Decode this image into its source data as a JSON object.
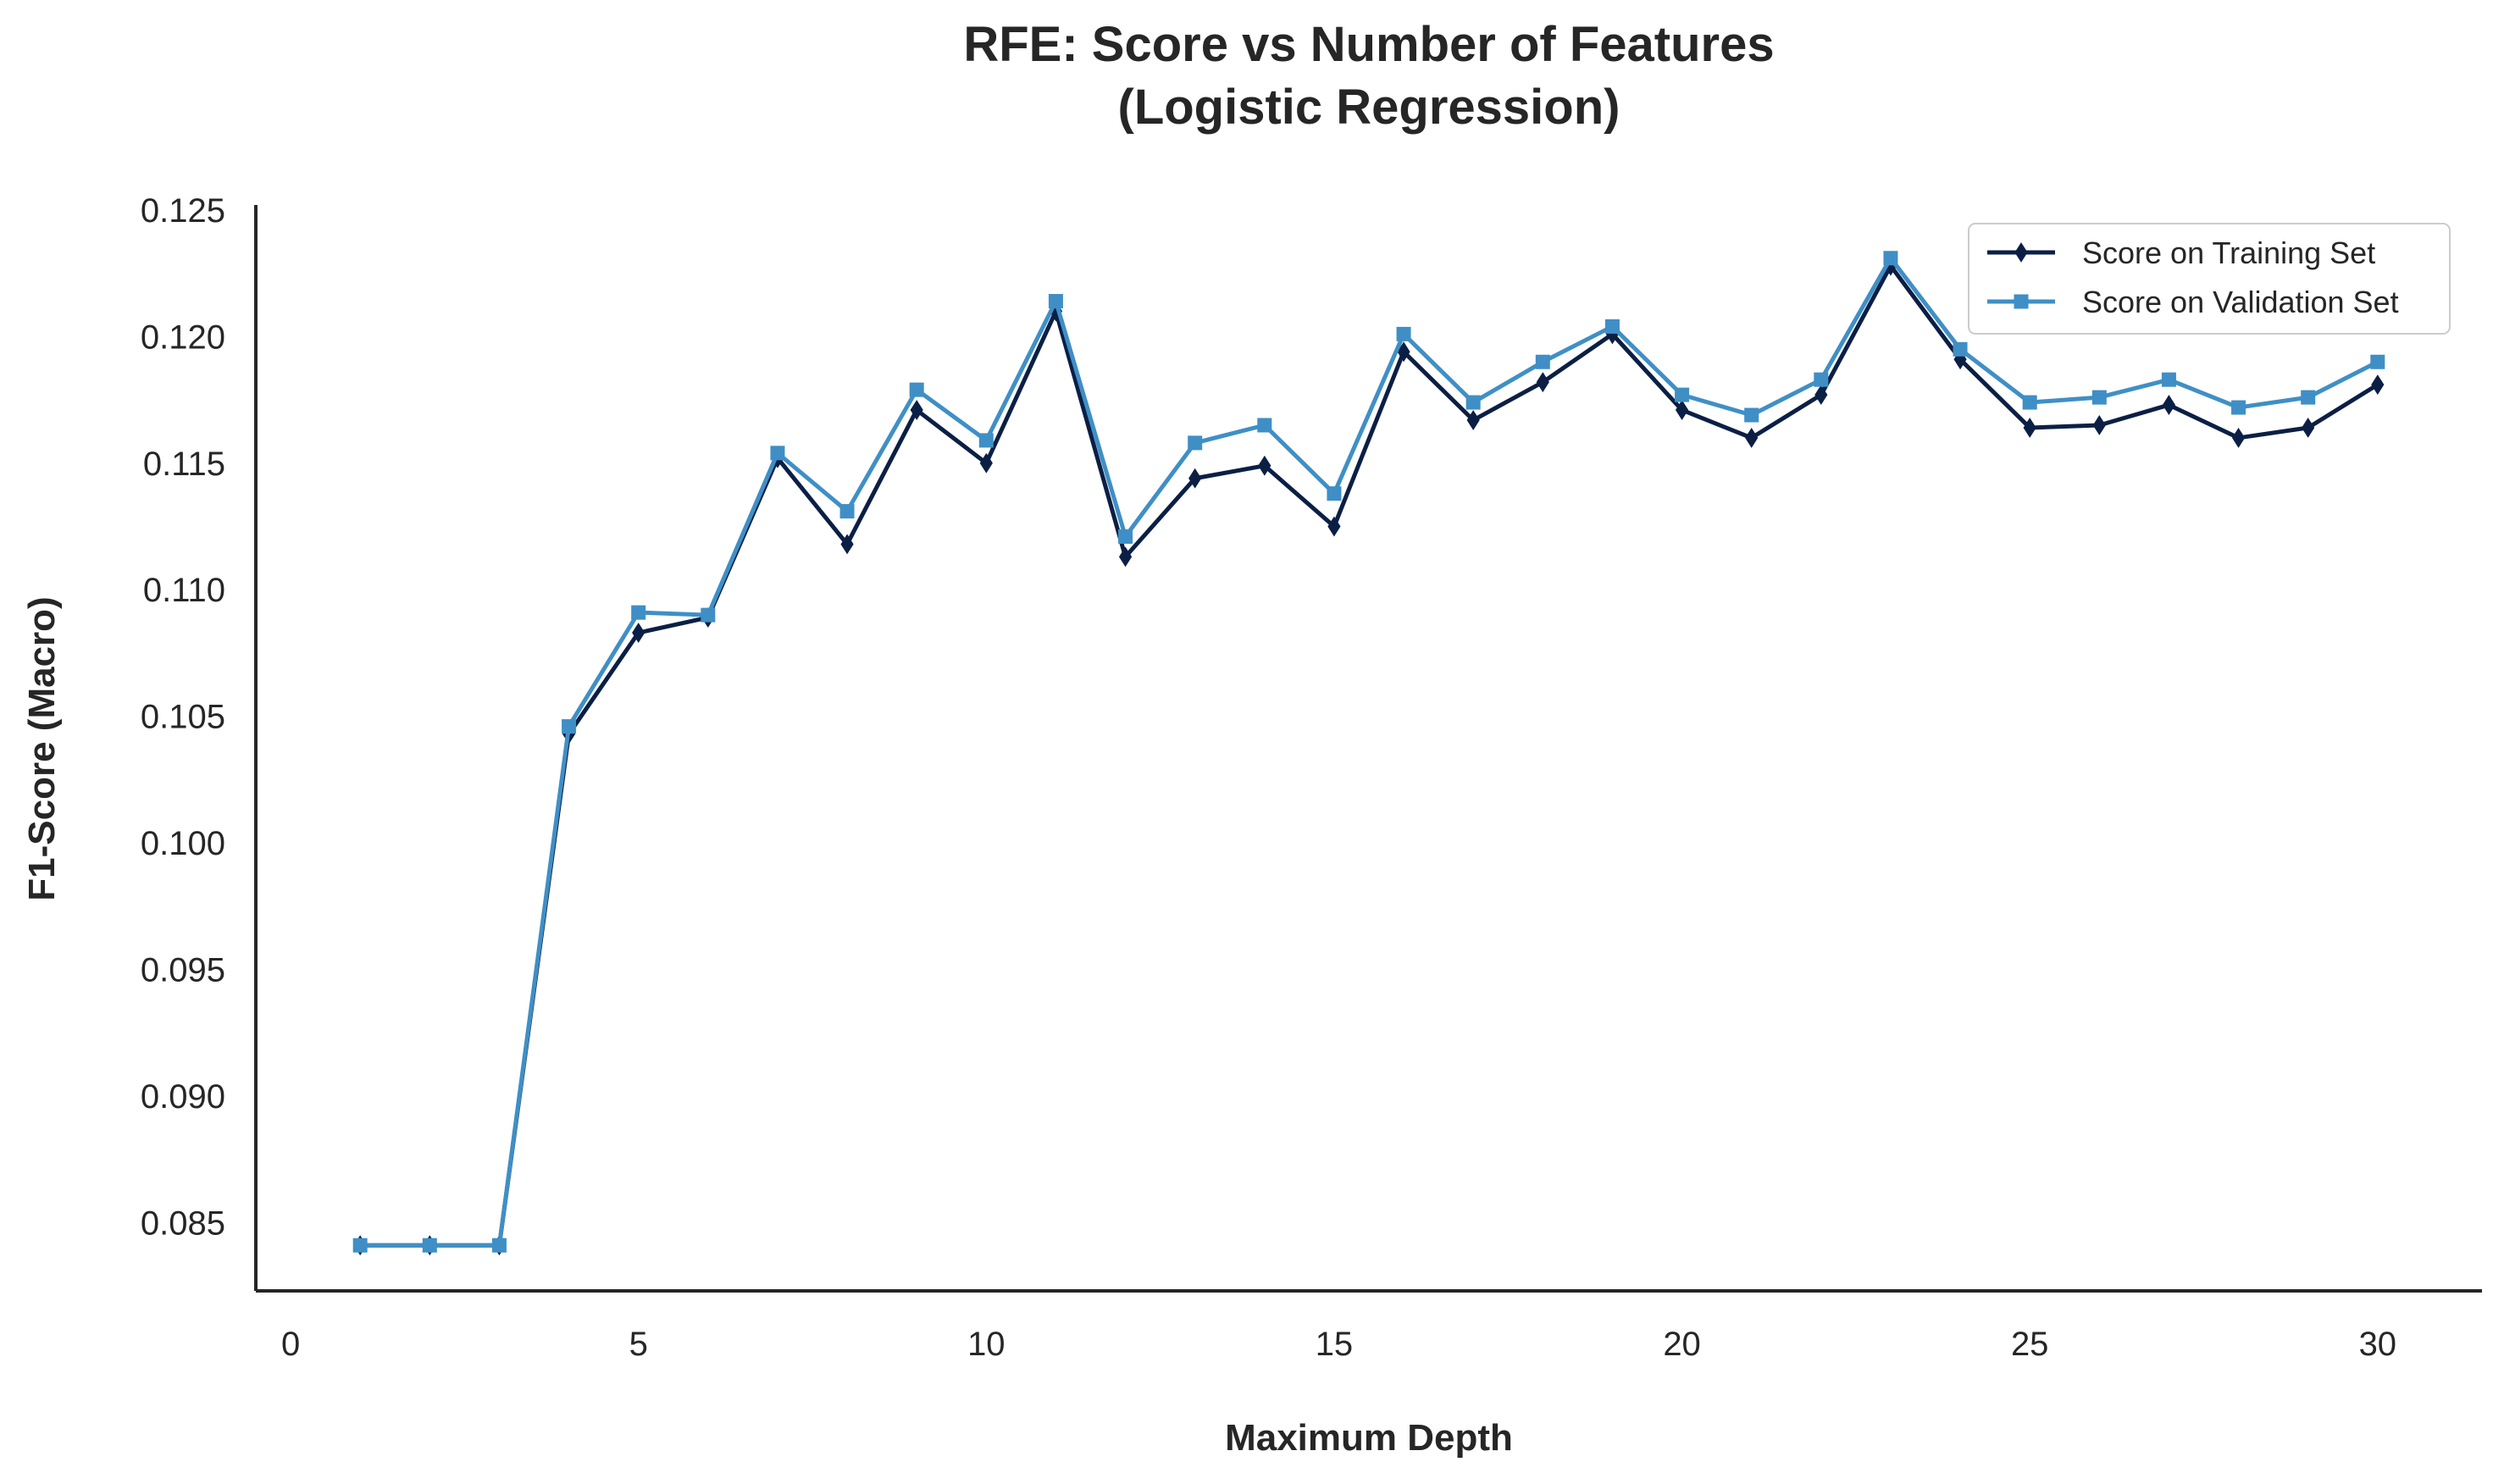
{
  "chart_data": {
    "type": "line",
    "title_line1": "RFE: Score vs Number of Features",
    "title_line2": "(Logistic Regression)",
    "xlabel": "Maximum Depth",
    "ylabel": "F1-Score (Macro)",
    "xlim": [
      -0.5,
      31.5
    ],
    "ylim": [
      0.0823,
      0.1252
    ],
    "xticks": [
      0,
      5,
      10,
      15,
      20,
      25,
      30
    ],
    "yticks": [
      0.085,
      0.09,
      0.095,
      0.1,
      0.105,
      0.11,
      0.115,
      0.12,
      0.125
    ],
    "ytick_labels": [
      "0.085",
      "0.090",
      "0.095",
      "0.100",
      "0.105",
      "0.110",
      "0.115",
      "0.120",
      "0.125"
    ],
    "grid": false,
    "legend_position": "top-right",
    "x": [
      1,
      2,
      3,
      4,
      5,
      6,
      7,
      8,
      9,
      10,
      11,
      12,
      13,
      14,
      15,
      16,
      17,
      18,
      19,
      20,
      21,
      22,
      23,
      24,
      25,
      26,
      27,
      28,
      29,
      30
    ],
    "series": [
      {
        "name": "Score on Training Set",
        "color": "#0b1f45",
        "marker": "diamond",
        "values": [
          0.0841,
          0.0841,
          0.0841,
          0.1043,
          0.1083,
          0.1089,
          0.1152,
          0.1118,
          0.1171,
          0.115,
          0.121,
          0.1113,
          0.1144,
          0.1149,
          0.1125,
          0.1194,
          0.1167,
          0.1182,
          0.1201,
          0.1171,
          0.116,
          0.1177,
          0.1228,
          0.1191,
          0.1164,
          0.1165,
          0.1173,
          0.116,
          0.1164,
          0.1181
        ]
      },
      {
        "name": "Score on Validation Set",
        "color": "#3f8fc6",
        "marker": "square",
        "values": [
          0.0841,
          0.0841,
          0.0841,
          0.1046,
          0.1091,
          0.109,
          0.1154,
          0.1131,
          0.1179,
          0.1159,
          0.1214,
          0.1121,
          0.1158,
          0.1165,
          0.1138,
          0.1201,
          0.1174,
          0.119,
          0.1204,
          0.1177,
          0.1169,
          0.1183,
          0.1231,
          0.1195,
          0.1174,
          0.1176,
          0.1183,
          0.1172,
          0.1176,
          0.119
        ]
      }
    ]
  }
}
